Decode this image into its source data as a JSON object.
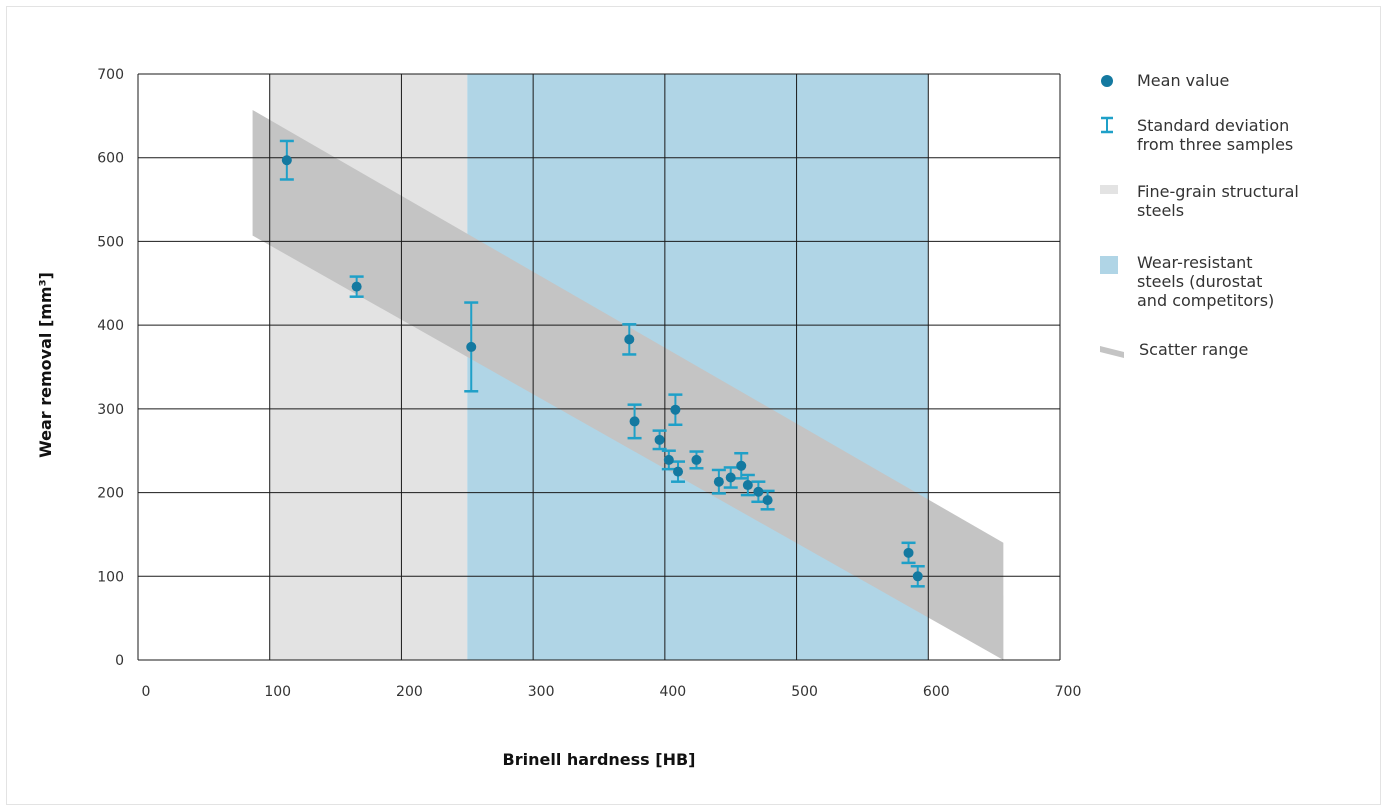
{
  "chart_data": {
    "type": "scatter",
    "xlabel": "Brinell hardness [HB]",
    "ylabel": "Wear removal [mm³]",
    "xlim": [
      0,
      700
    ],
    "ylim": [
      0,
      700
    ],
    "xticks": [
      "0",
      "100",
      "200",
      "300",
      "400",
      "500",
      "600",
      "700"
    ],
    "yticks": [
      "0",
      "100",
      "200",
      "300",
      "400",
      "500",
      "600",
      "700"
    ],
    "grid": true,
    "legend_position": "right",
    "regions": [
      {
        "name": "Fine-grain structural steels",
        "x_from": 100,
        "x_to": 250,
        "color": "#e3e3e3"
      },
      {
        "name": "Wear-resistant steels (durostat and competitors)",
        "x_from": 250,
        "x_to": 600,
        "color": "#b0d5e6"
      }
    ],
    "band": {
      "name": "Scatter range",
      "color": "#c4c4c4",
      "upper": [
        [
          87,
          657
        ],
        [
          657,
          140
        ]
      ],
      "lower": [
        [
          87,
          507
        ],
        [
          657,
          0
        ]
      ]
    },
    "series": [
      {
        "name": "Mean value",
        "marker_color": "#1479a0",
        "errorbar_color": "#1fa0c8",
        "x": [
          113,
          166,
          253,
          373,
          377,
          408,
          396,
          403,
          410,
          424,
          441,
          450,
          458,
          463,
          471,
          478,
          585,
          592
        ],
        "y": [
          597,
          446,
          374,
          383,
          285,
          299,
          263,
          239,
          225,
          239,
          213,
          218,
          232,
          209,
          201,
          191,
          128,
          100
        ],
        "err": [
          23,
          12,
          53,
          18,
          20,
          18,
          11,
          11,
          12,
          10,
          14,
          12,
          15,
          12,
          12,
          11,
          12,
          12
        ]
      }
    ],
    "legend": [
      {
        "label": "Mean value",
        "kind": "dot",
        "color": "#1479a0"
      },
      {
        "label": "Standard deviation from three samples",
        "lines": [
          "Standard deviation",
          "from three samples"
        ],
        "kind": "errorbar",
        "color": "#1fa0c8"
      },
      {
        "label": "Fine-grain structural steels",
        "lines": [
          "Fine-grain structural",
          "steels"
        ],
        "kind": "rect",
        "color": "#e3e3e3"
      },
      {
        "label": "Wear-resistant steels (durostat and competitors)",
        "lines": [
          "Wear-resistant",
          "steels (durostat",
          "and competitors)"
        ],
        "kind": "rect",
        "color": "#b0d5e6"
      },
      {
        "label": "Scatter range",
        "kind": "band",
        "color": "#c4c4c4"
      }
    ]
  }
}
